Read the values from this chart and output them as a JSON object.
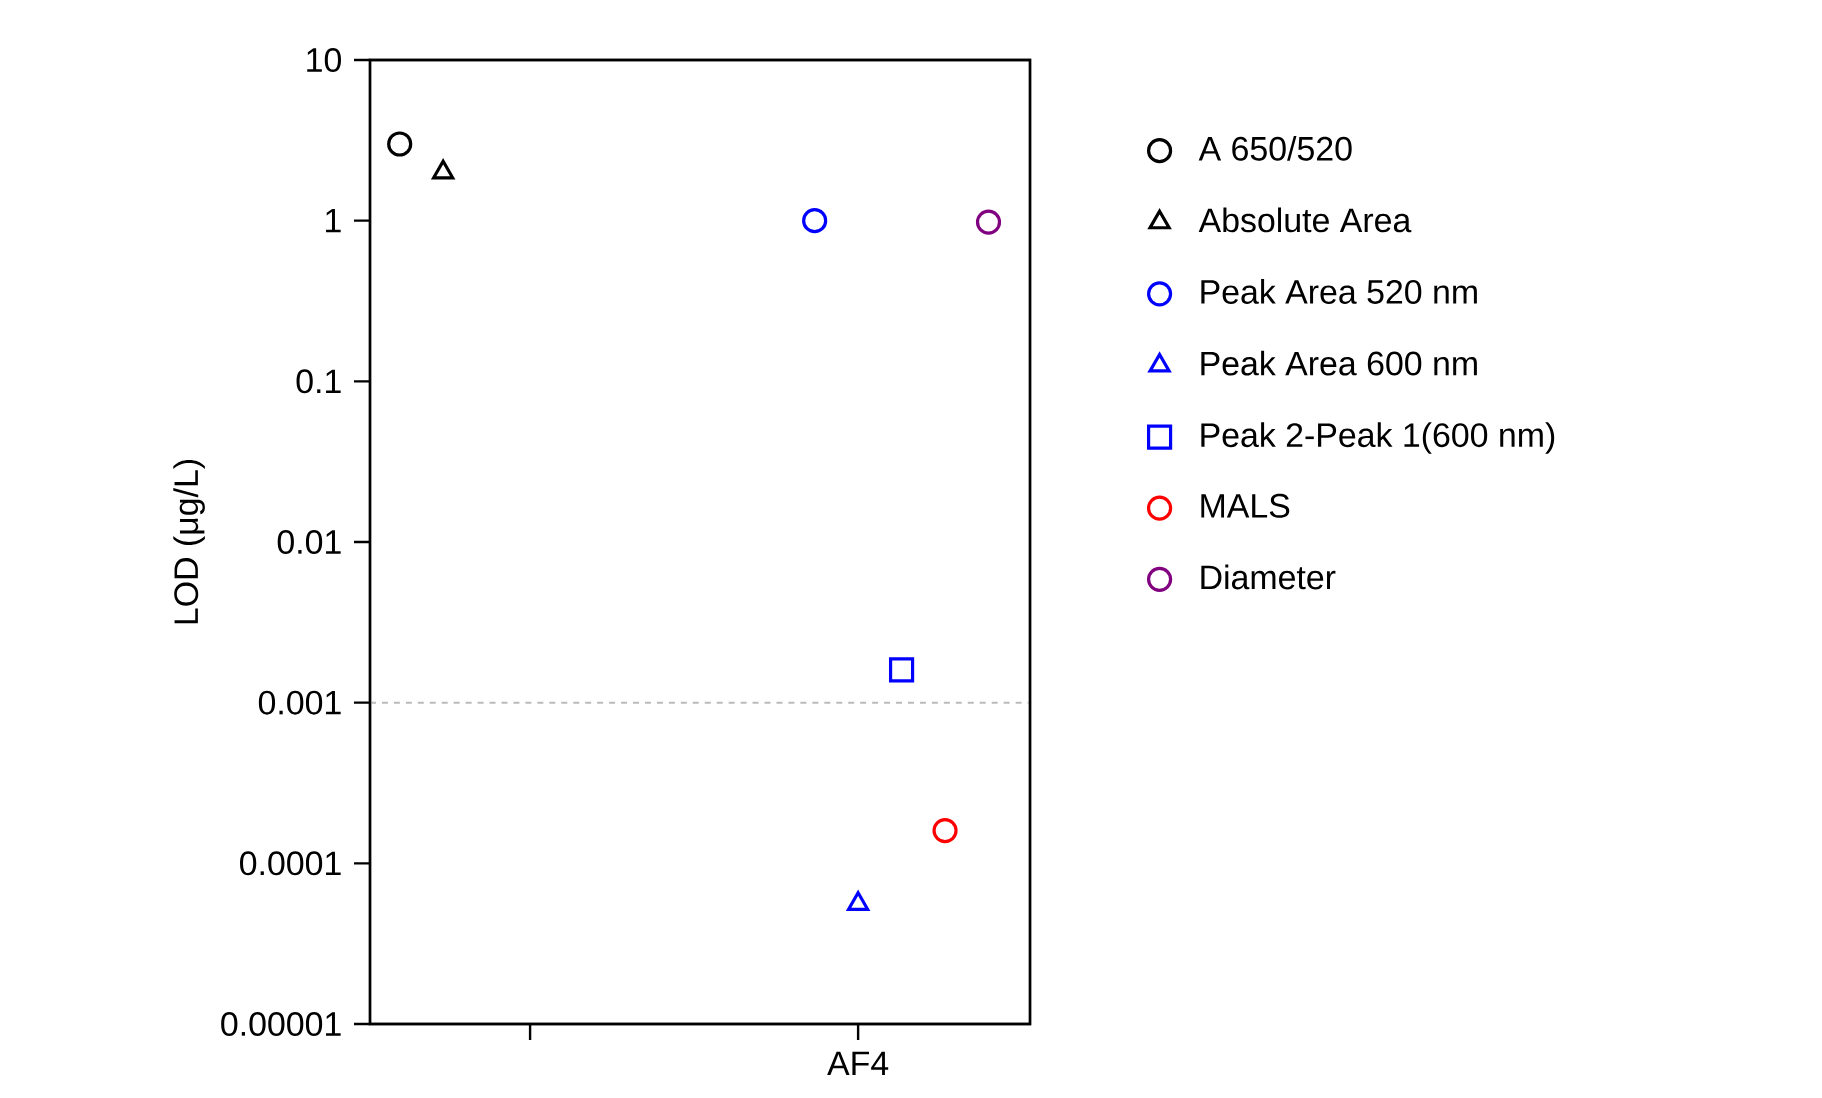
{
  "chart_data": {
    "type": "scatter",
    "ylabel": "LOD (μg/L)",
    "categories": [
      null,
      "AF4"
    ],
    "log": "y",
    "ylim": [
      1e-05,
      10
    ],
    "yticks": [
      {
        "value": 1e-05,
        "label": "0.00001"
      },
      {
        "value": 0.0001,
        "label": "0.0001"
      },
      {
        "value": 0.001,
        "label": "0.001"
      },
      {
        "value": 0.01,
        "label": "0.01"
      },
      {
        "value": 0.1,
        "label": "0.1"
      },
      {
        "value": 1,
        "label": "1"
      },
      {
        "value": 10,
        "label": "10"
      }
    ],
    "grid": false,
    "legend": "right",
    "ref_lines": [
      {
        "axis": "y",
        "value": 0.001,
        "color": "#bbbbbb",
        "line_style": "dashed"
      }
    ],
    "series": [
      {
        "name": "A 650/520",
        "color": "#000000",
        "marker": "circle",
        "values": [
          3.0,
          null
        ]
      },
      {
        "name": "Absolute Area",
        "color": "#000000",
        "marker": "triangle",
        "values": [
          2.0,
          null
        ]
      },
      {
        "name": "Peak Area 520 nm",
        "color": "#0000ff",
        "marker": "circle",
        "values": [
          null,
          1.0
        ]
      },
      {
        "name": "Peak Area 600 nm",
        "color": "#0000ff",
        "marker": "triangle",
        "values": [
          null,
          5.6e-05
        ]
      },
      {
        "name": "Peak 2-Peak 1(600 nm)",
        "color": "#0000ff",
        "marker": "square",
        "values": [
          null,
          0.0016
        ]
      },
      {
        "name": "MALS",
        "color": "#ff0000",
        "marker": "circle",
        "values": [
          null,
          0.00016
        ]
      },
      {
        "name": "Diameter",
        "color": "#800080",
        "marker": "circle",
        "values": [
          null,
          0.98
        ]
      }
    ]
  }
}
